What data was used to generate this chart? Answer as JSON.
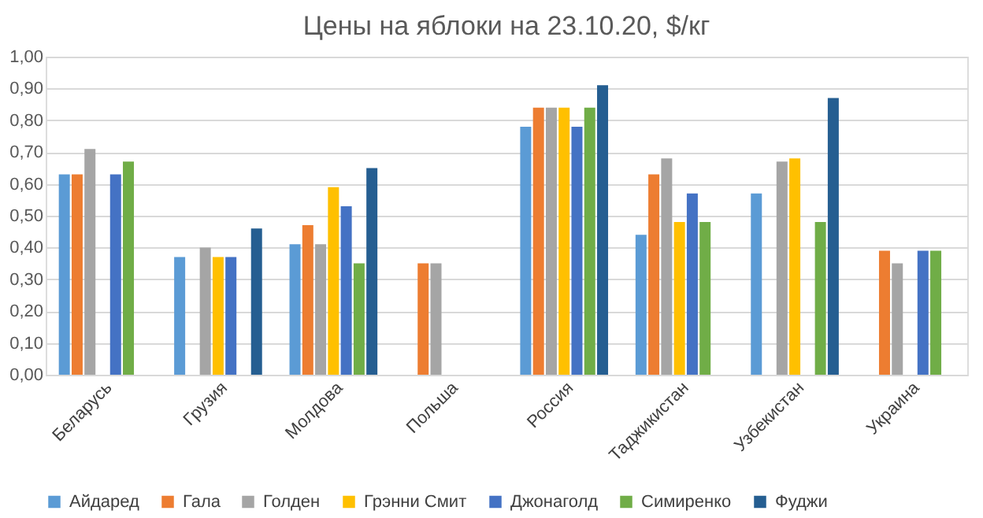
{
  "chart_data": {
    "type": "bar",
    "title": "Цены на яблоки на 23.10.20, $/кг",
    "categories": [
      "Беларусь",
      "Грузия",
      "Молдова",
      "Польша",
      "Россия",
      "Таджикистан",
      "Узбекистан",
      "Украина"
    ],
    "series": [
      {
        "name": "Айдаред",
        "color": "#5b9bd5",
        "values": [
          0.63,
          0.37,
          0.41,
          null,
          0.78,
          0.44,
          0.57,
          null
        ]
      },
      {
        "name": "Гала",
        "color": "#ed7d31",
        "values": [
          0.63,
          null,
          0.47,
          0.35,
          0.84,
          0.63,
          null,
          0.39
        ]
      },
      {
        "name": "Голден",
        "color": "#a5a5a5",
        "values": [
          0.71,
          0.4,
          0.41,
          0.35,
          0.84,
          0.68,
          0.67,
          0.35
        ]
      },
      {
        "name": "Грэнни Смит",
        "color": "#ffc000",
        "values": [
          null,
          0.37,
          0.59,
          null,
          0.84,
          0.48,
          0.68,
          null
        ]
      },
      {
        "name": "Джонаголд",
        "color": "#4472c4",
        "values": [
          0.63,
          0.37,
          0.53,
          null,
          0.78,
          0.57,
          null,
          0.39
        ]
      },
      {
        "name": "Симиренко",
        "color": "#70ad47",
        "values": [
          0.67,
          null,
          0.35,
          null,
          0.84,
          0.48,
          0.48,
          0.39
        ]
      },
      {
        "name": "Фуджи",
        "color": "#255e91",
        "values": [
          null,
          0.46,
          0.65,
          null,
          0.91,
          null,
          0.87,
          null
        ]
      }
    ],
    "ylim": [
      0,
      1
    ],
    "yticks": [
      {
        "value": 0,
        "label": "0,00"
      },
      {
        "value": 0.1,
        "label": "0,10"
      },
      {
        "value": 0.2,
        "label": "0,20"
      },
      {
        "value": 0.3,
        "label": "0,30"
      },
      {
        "value": 0.4,
        "label": "0,40"
      },
      {
        "value": 0.5,
        "label": "0,50"
      },
      {
        "value": 0.6,
        "label": "0,60"
      },
      {
        "value": 0.7,
        "label": "0,70"
      },
      {
        "value": 0.8,
        "label": "0,80"
      },
      {
        "value": 0.9,
        "label": "0,90"
      },
      {
        "value": 1,
        "label": "1,00"
      }
    ],
    "grid": "y",
    "legend": "bottom"
  }
}
